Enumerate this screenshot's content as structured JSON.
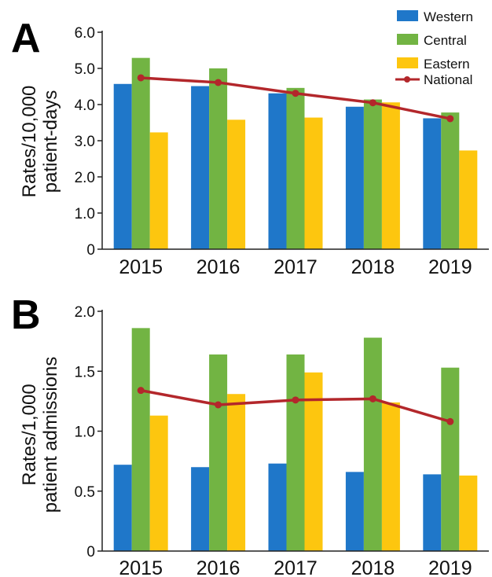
{
  "colors": {
    "western": "#1f77c9",
    "central": "#72b443",
    "eastern": "#fdc60f",
    "national": "#b3272b"
  },
  "legend": [
    "Western",
    "Central",
    "Eastern",
    "National"
  ],
  "chart_data": [
    {
      "type": "bar",
      "panel_label": "A",
      "categories": [
        "2015",
        "2016",
        "2017",
        "2018",
        "2019"
      ],
      "series": [
        {
          "name": "Western",
          "kind": "bar",
          "values": [
            4.57,
            4.51,
            4.31,
            3.94,
            3.62
          ]
        },
        {
          "name": "Central",
          "kind": "bar",
          "values": [
            5.29,
            5.0,
            4.46,
            4.14,
            3.78
          ]
        },
        {
          "name": "Eastern",
          "kind": "bar",
          "values": [
            3.23,
            3.58,
            3.64,
            4.06,
            2.73
          ]
        },
        {
          "name": "National",
          "kind": "line",
          "values": [
            4.74,
            4.61,
            4.31,
            4.05,
            3.61
          ]
        }
      ],
      "ylabel": [
        "Rates/10,000",
        "patient-days"
      ],
      "ylim": [
        0,
        6.0
      ],
      "yticks": [
        "0",
        "1.0",
        "2.0",
        "3.0",
        "4.0",
        "5.0",
        "6.0"
      ],
      "ytick_values": [
        0,
        1,
        2,
        3,
        4,
        5,
        6
      ],
      "legend_position": "top-right",
      "grid": false
    },
    {
      "type": "bar",
      "panel_label": "B",
      "categories": [
        "2015",
        "2016",
        "2017",
        "2018",
        "2019"
      ],
      "series": [
        {
          "name": "Western",
          "kind": "bar",
          "values": [
            0.72,
            0.7,
            0.73,
            0.66,
            0.64
          ]
        },
        {
          "name": "Central",
          "kind": "bar",
          "values": [
            1.86,
            1.64,
            1.64,
            1.78,
            1.53
          ]
        },
        {
          "name": "Eastern",
          "kind": "bar",
          "values": [
            1.13,
            1.31,
            1.49,
            1.24,
            0.63
          ]
        },
        {
          "name": "National",
          "kind": "line",
          "values": [
            1.34,
            1.22,
            1.26,
            1.27,
            1.08
          ]
        }
      ],
      "ylabel": [
        "Rates/1,000",
        "patient admissions"
      ],
      "ylim": [
        0,
        2.0
      ],
      "yticks": [
        "0",
        "0.5",
        "1.0",
        "1.5",
        "2.0"
      ],
      "ytick_values": [
        0,
        0.5,
        1.0,
        1.5,
        2.0
      ],
      "grid": false
    }
  ]
}
